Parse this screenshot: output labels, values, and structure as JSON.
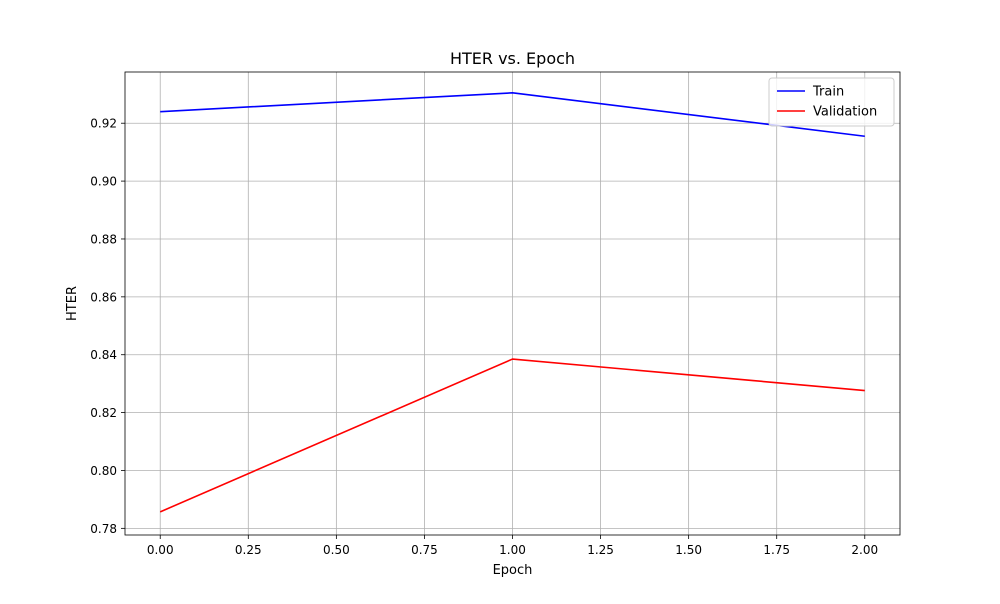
{
  "chart_data": {
    "type": "line",
    "title": "HTER vs. Epoch",
    "xlabel": "Epoch",
    "ylabel": "HTER",
    "x": [
      0,
      1,
      2
    ],
    "series": [
      {
        "name": "Train",
        "values": [
          0.924,
          0.9305,
          0.9155
        ],
        "color": "#0000ff"
      },
      {
        "name": "Validation",
        "values": [
          0.7857,
          0.8385,
          0.8276
        ],
        "color": "#ff0000"
      }
    ],
    "xlim": [
      -0.1,
      2.1
    ],
    "ylim": [
      0.7777,
      0.9377
    ],
    "xticks": [
      0.0,
      0.25,
      0.5,
      0.75,
      1.0,
      1.25,
      1.5,
      1.75,
      2.0
    ],
    "xtick_labels": [
      "0.00",
      "0.25",
      "0.50",
      "0.75",
      "1.00",
      "1.25",
      "1.50",
      "1.75",
      "2.00"
    ],
    "yticks": [
      0.78,
      0.8,
      0.82,
      0.84,
      0.86,
      0.88,
      0.9,
      0.92
    ],
    "ytick_labels": [
      "0.78",
      "0.80",
      "0.82",
      "0.84",
      "0.86",
      "0.88",
      "0.90",
      "0.92"
    ],
    "grid": true,
    "legend_position": "top-right",
    "colors": {
      "grid": "#b0b0b0",
      "axes": "#000000"
    }
  }
}
